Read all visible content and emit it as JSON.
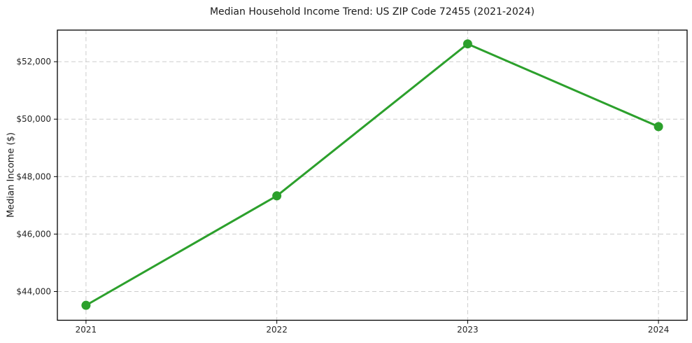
{
  "chart_data": {
    "type": "line",
    "title": "Median Household Income Trend: US ZIP Code 72455 (2021-2024)",
    "xlabel": "",
    "ylabel": "Median Income ($)",
    "categories": [
      "2021",
      "2022",
      "2023",
      "2024"
    ],
    "x": [
      2021,
      2022,
      2023,
      2024
    ],
    "series": [
      {
        "name": "Median Household Income",
        "values": [
          43520,
          47330,
          52620,
          49740
        ]
      }
    ],
    "xtick_labels": [
      "2021",
      "2022",
      "2023",
      "2024"
    ],
    "yticks": [
      44000,
      46000,
      48000,
      50000,
      52000
    ],
    "ytick_labels": [
      "$44,000",
      "$46,000",
      "$48,000",
      "$50,000",
      "$52,000"
    ],
    "xlim": [
      2020.85,
      2024.15
    ],
    "ylim": [
      43000,
      53100
    ],
    "grid": true,
    "legend": false,
    "line_color": "#2ca02c",
    "marker": "circle",
    "line_width": 3,
    "marker_radius": 6.5
  }
}
